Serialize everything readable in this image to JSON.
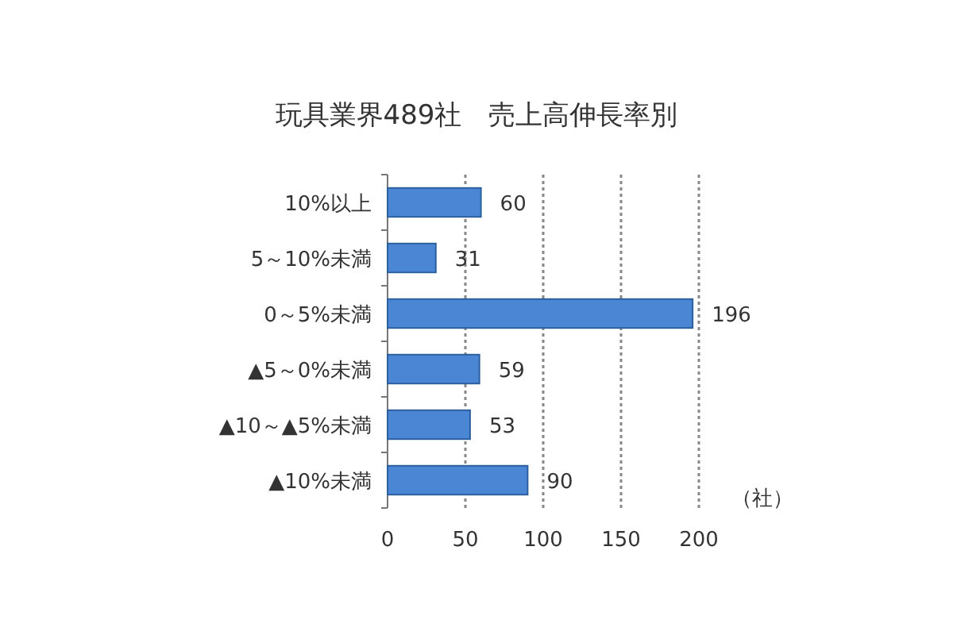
{
  "chart_data": {
    "type": "bar",
    "orientation": "horizontal",
    "title": "玩具業界489社　売上高伸長率別",
    "xlabel": "（社）",
    "categories": [
      "10%以上",
      "5～10%未満",
      "0～5%未満",
      "▲5～0%未満",
      "▲10～▲5%未満",
      "▲10%未満"
    ],
    "values": [
      60,
      31,
      196,
      59,
      53,
      90
    ],
    "color": "#4a86d4",
    "xlim": [
      0,
      200
    ],
    "xticks": [
      0,
      50,
      100,
      150,
      200
    ],
    "grid": "x",
    "data_labels": true
  }
}
